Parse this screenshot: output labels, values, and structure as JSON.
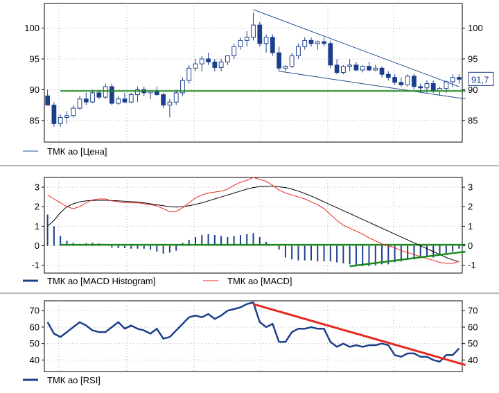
{
  "colors": {
    "candle": "#1b3f8a",
    "trend_blue": "#1f4f8f",
    "support_green": "#1a8a1a",
    "macd_red": "#e8281e",
    "signal_black": "#000000",
    "rsi_line": "#1b3f8a",
    "rsi_trend": "#e8281e",
    "grid": "#b0b0b0",
    "separator": "#a0a0a0"
  },
  "chart_data": [
    {
      "type": "candlestick",
      "panel": "price",
      "legend": [
        {
          "label": "ТМК ао [Цена]",
          "style": "line",
          "color": "#1f4f8f"
        }
      ],
      "y_ticks": [
        85,
        90,
        95,
        100
      ],
      "ylim": [
        81.5,
        104
      ],
      "grid": true,
      "last_value_label": "91,7",
      "series": [
        {
          "name": "ТМК ао [Цена]",
          "ohlc": [
            [
              89,
              90,
              87.5,
              87.5
            ],
            [
              87.5,
              88,
              84,
              84.5
            ],
            [
              84.5,
              86,
              84,
              85.5
            ],
            [
              85.5,
              86.5,
              84.5,
              85.8
            ],
            [
              85.8,
              87.5,
              85.5,
              87
            ],
            [
              87,
              89,
              86.8,
              88.5
            ],
            [
              88.5,
              89.5,
              87.5,
              88
            ],
            [
              88,
              90,
              87.8,
              89.5
            ],
            [
              89.5,
              90,
              88.5,
              88.8
            ],
            [
              88.8,
              91,
              88.5,
              90.5
            ],
            [
              90.5,
              91,
              87.5,
              87.8
            ],
            [
              87.8,
              89,
              87.5,
              88.5
            ],
            [
              88.5,
              89.5,
              87.8,
              88
            ],
            [
              88,
              89.5,
              87.8,
              89.2
            ],
            [
              89.2,
              90.5,
              88,
              90
            ],
            [
              90,
              90.5,
              89,
              89.5
            ],
            [
              89.5,
              90,
              88.5,
              89.8
            ],
            [
              89.8,
              90.5,
              89,
              89.2
            ],
            [
              89.2,
              89.5,
              87,
              87.5
            ],
            [
              87.5,
              88.5,
              85.5,
              88
            ],
            [
              88,
              90,
              87.5,
              89.5
            ],
            [
              89.5,
              92,
              89,
              91.5
            ],
            [
              91.5,
              94,
              91,
              93.5
            ],
            [
              93.5,
              95,
              93,
              94.2
            ],
            [
              94.2,
              95.5,
              93,
              95
            ],
            [
              95,
              96,
              94,
              94.5
            ],
            [
              94.5,
              95,
              93,
              93.6
            ],
            [
              93.6,
              95,
              93,
              94.5
            ],
            [
              94.5,
              95.5,
              94,
              95.5
            ],
            [
              95.5,
              97.5,
              95,
              97
            ],
            [
              97,
              98.5,
              96.5,
              98
            ],
            [
              98,
              99.5,
              97,
              98.5
            ],
            [
              98.5,
              102.5,
              98,
              100.5
            ],
            [
              100.5,
              101,
              97,
              97.5
            ],
            [
              97.5,
              99,
              96,
              98.5
            ],
            [
              98.5,
              99,
              95.5,
              96
            ],
            [
              96,
              97,
              93,
              93.5
            ],
            [
              93.5,
              94,
              93,
              93.8
            ],
            [
              93.8,
              96,
              93.5,
              95.5
            ],
            [
              95.5,
              97.5,
              95,
              97
            ],
            [
              97,
              98.5,
              96.5,
              98
            ],
            [
              98,
              98.5,
              97,
              97.5
            ],
            [
              97.5,
              98,
              96.5,
              97.8
            ],
            [
              97.8,
              98.5,
              97,
              97.5
            ],
            [
              97.5,
              98,
              93.5,
              94
            ],
            [
              94,
              95,
              92.5,
              92.8
            ],
            [
              92.8,
              94,
              92.5,
              93.8
            ],
            [
              93.8,
              95,
              93,
              94
            ],
            [
              94,
              94.5,
              93,
              93.2
            ],
            [
              93.2,
              94,
              92.8,
              93.8
            ],
            [
              93.8,
              94.5,
              93,
              93.2
            ],
            [
              93.2,
              94,
              93,
              93.5
            ],
            [
              93.5,
              93.8,
              92,
              92.5
            ],
            [
              92.5,
              93,
              91.5,
              92
            ],
            [
              92,
              92.5,
              90.8,
              91.2
            ],
            [
              91.2,
              92,
              90.5,
              90.8
            ],
            [
              90.8,
              92.5,
              90.5,
              92.2
            ],
            [
              92.2,
              92.6,
              90,
              90.5
            ],
            [
              90.5,
              91,
              89.5,
              90.3
            ],
            [
              90.3,
              91.5,
              89.5,
              91
            ],
            [
              91,
              91.5,
              89.5,
              89.8
            ],
            [
              89.8,
              90.5,
              89,
              90.2
            ],
            [
              90.2,
              91.5,
              89.5,
              91.3
            ],
            [
              91.3,
              92.5,
              90.5,
              92
            ],
            [
              92,
              92.5,
              91,
              91.7
            ]
          ]
        },
        {
          "name": "trend_upper",
          "points": [
            [
              32,
              103
            ],
            [
              64,
              90.5
            ]
          ]
        },
        {
          "name": "trend_lower",
          "points": [
            [
              36,
              93
            ],
            [
              65,
              88.5
            ]
          ]
        },
        {
          "name": "support",
          "points": [
            [
              2,
              89.8
            ],
            [
              65,
              89.8
            ]
          ]
        }
      ]
    },
    {
      "type": "line",
      "panel": "macd",
      "legend": [
        {
          "label": "ТМК ао [MACD Histogram]",
          "style": "thick",
          "color": "#1b3f8a"
        },
        {
          "label": "ТМК ао [MACD]",
          "style": "line",
          "color": "#e8281e"
        }
      ],
      "y_ticks": [
        -1,
        0,
        1,
        2,
        3
      ],
      "ylim": [
        -1.4,
        3.5
      ],
      "grid": true,
      "series": [
        {
          "name": "ТМК ао [MACD]",
          "values": [
            2.6,
            2.4,
            2.2,
            2.0,
            1.9,
            2.0,
            2.2,
            2.35,
            2.4,
            2.4,
            2.3,
            2.25,
            2.2,
            2.2,
            2.2,
            2.15,
            2.1,
            2.05,
            1.9,
            1.75,
            1.75,
            1.95,
            2.2,
            2.45,
            2.6,
            2.7,
            2.75,
            2.8,
            2.9,
            3.1,
            3.25,
            3.35,
            3.5,
            3.4,
            3.3,
            3.1,
            2.85,
            2.7,
            2.6,
            2.5,
            2.4,
            2.25,
            2.1,
            1.9,
            1.6,
            1.3,
            1.05,
            0.9,
            0.75,
            0.6,
            0.4,
            0.25,
            0.1,
            0.0,
            -0.1,
            -0.25,
            -0.35,
            -0.45,
            -0.55,
            -0.65,
            -0.75,
            -0.85,
            -0.9,
            -0.9,
            -0.8
          ]
        },
        {
          "name": "signal",
          "values": [
            1.0,
            1.3,
            1.7,
            2.0,
            2.15,
            2.25,
            2.3,
            2.32,
            2.33,
            2.33,
            2.32,
            2.3,
            2.28,
            2.26,
            2.24,
            2.2,
            2.15,
            2.1,
            2.05,
            2.0,
            1.98,
            2.0,
            2.05,
            2.12,
            2.2,
            2.3,
            2.4,
            2.5,
            2.6,
            2.7,
            2.8,
            2.9,
            2.98,
            3.03,
            3.05,
            3.05,
            3.02,
            2.98,
            2.9,
            2.8,
            2.68,
            2.55,
            2.4,
            2.25,
            2.1,
            1.95,
            1.8,
            1.65,
            1.5,
            1.35,
            1.2,
            1.05,
            0.9,
            0.75,
            0.6,
            0.45,
            0.3,
            0.15,
            0.0,
            -0.15,
            -0.3,
            -0.45,
            -0.6,
            -0.72,
            -0.82
          ]
        },
        {
          "name": "ТМК ао [MACD Histogram]",
          "values": [
            1.6,
            1.0,
            0.5,
            0.25,
            0.15,
            0.1,
            0.12,
            0.15,
            0.12,
            0.0,
            -0.1,
            -0.12,
            -0.12,
            -0.15,
            -0.15,
            -0.15,
            -0.2,
            -0.3,
            -0.4,
            -0.35,
            -0.25,
            0.15,
            0.3,
            0.45,
            0.55,
            0.6,
            0.55,
            0.5,
            0.45,
            0.5,
            0.55,
            0.6,
            0.65,
            0.45,
            0.2,
            0.05,
            -0.2,
            -0.6,
            -0.7,
            -0.75,
            -0.75,
            -0.75,
            -0.8,
            -0.8,
            -0.8,
            -0.85,
            -0.9,
            -0.95,
            -1.0,
            -1.05,
            -1.05,
            -1.0,
            -0.95,
            -0.95,
            -0.85,
            -0.8,
            -0.65,
            -0.7,
            -0.6,
            -0.55,
            -0.6,
            -0.5,
            -0.4,
            -0.3,
            -0.15
          ]
        },
        {
          "name": "support",
          "points": [
            [
              2,
              0.05
            ],
            [
              65,
              0.05
            ]
          ]
        },
        {
          "name": "trend",
          "points": [
            [
              47,
              -1.05
            ],
            [
              65,
              -0.3
            ]
          ]
        }
      ]
    },
    {
      "type": "line",
      "panel": "rsi",
      "legend": [
        {
          "label": "ТМК ао [RSI]",
          "style": "thick",
          "color": "#1b3f8a"
        }
      ],
      "y_ticks": [
        40,
        50,
        60,
        70
      ],
      "ylim": [
        33,
        76
      ],
      "grid": true,
      "series": [
        {
          "name": "ТМК ао [RSI]",
          "values": [
            63,
            56,
            54,
            57,
            60,
            63,
            61,
            58,
            57,
            57,
            60,
            63,
            59,
            61,
            59,
            58,
            56,
            59,
            53,
            54,
            58,
            62,
            66,
            67,
            66,
            68,
            65,
            67,
            70,
            71,
            72,
            74,
            75,
            63,
            60,
            62,
            51,
            51,
            57,
            59,
            59,
            60,
            59,
            59,
            51,
            48,
            50,
            48,
            49,
            48,
            49,
            49,
            50,
            49,
            43,
            42,
            44,
            44,
            42,
            42,
            40,
            39,
            43,
            43,
            47
          ]
        },
        {
          "name": "trend",
          "points": [
            [
              32,
              74
            ],
            [
              65,
              37
            ]
          ]
        }
      ]
    }
  ]
}
